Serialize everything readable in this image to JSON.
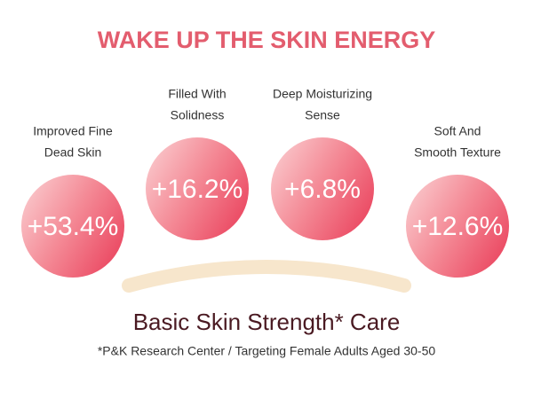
{
  "header": {
    "title": "WAKE UP THE SKIN ENERGY"
  },
  "items": [
    {
      "label": [
        "Improved Fine",
        "Dead Skin"
      ],
      "value": "+53.4%"
    },
    {
      "label": [
        "Filled With",
        "Solidness"
      ],
      "value": "+16.2%"
    },
    {
      "label": [
        "Deep Moisturizing",
        "Sense"
      ],
      "value": "+6.8%"
    },
    {
      "label": [
        "Soft And",
        "Smooth Texture"
      ],
      "value": "+12.6%"
    }
  ],
  "footer": {
    "heading": "Basic Skin Strength* Care",
    "note": "*P&K Research Center / Targeting Female Adults Aged 30-50"
  }
}
